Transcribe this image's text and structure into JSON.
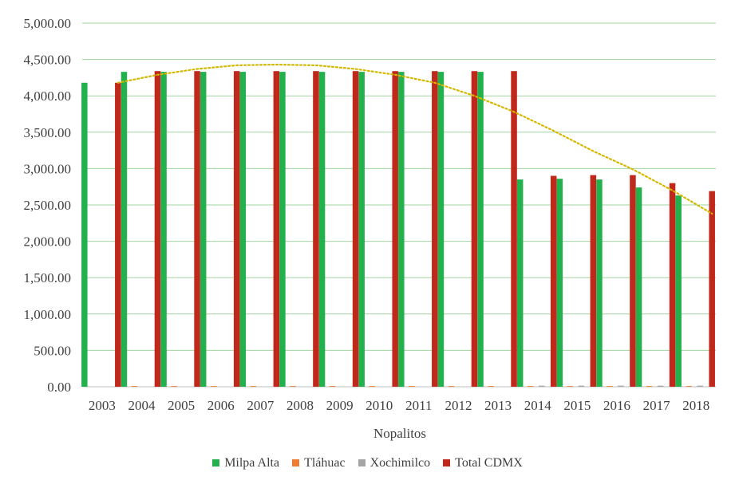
{
  "chart_data": {
    "type": "bar",
    "xlabel": "Nopalitos",
    "ylabel": "",
    "ylim": [
      0,
      5000
    ],
    "yticks": [
      "0.00",
      "500.00",
      "1,000.00",
      "1,500.00",
      "2,000.00",
      "2,500.00",
      "3,000.00",
      "3,500.00",
      "4,000.00",
      "4,500.00",
      "5,000.00"
    ],
    "grid": true,
    "legend_position": "bottom",
    "categories": [
      "2003",
      "2004",
      "2005",
      "2006",
      "2007",
      "2008",
      "2009",
      "2010",
      "2011",
      "2012",
      "2013",
      "2014",
      "2015",
      "2016",
      "2017",
      "2018"
    ],
    "series": [
      {
        "name": "Milpa Alta",
        "color": "#22b14c",
        "values": [
          4180,
          4330,
          4330,
          4330,
          4330,
          4330,
          4330,
          4330,
          4330,
          4330,
          4330,
          2850,
          2860,
          2850,
          2740,
          2630
        ]
      },
      {
        "name": "Tláhuac",
        "color": "#ed7d31",
        "values": [
          0,
          10,
          10,
          10,
          10,
          10,
          10,
          10,
          10,
          10,
          10,
          10,
          10,
          10,
          10,
          10
        ]
      },
      {
        "name": "Xochimilco",
        "color": "#a5a5a5",
        "values": [
          0,
          0,
          0,
          0,
          0,
          0,
          0,
          0,
          0,
          0,
          0,
          15,
          15,
          15,
          15,
          15
        ]
      },
      {
        "name": "Total CDMX",
        "color": "#c0281b",
        "values": [
          4180,
          4340,
          4340,
          4340,
          4340,
          4340,
          4340,
          4340,
          4340,
          4340,
          4340,
          2900,
          2910,
          2910,
          2800,
          2690
        ]
      }
    ],
    "trendline": {
      "type": "polynomial",
      "color": "#d4b800",
      "values": [
        4180,
        4290,
        4370,
        4420,
        4430,
        4420,
        4370,
        4290,
        4180,
        4000,
        3780,
        3520,
        3240,
        2990,
        2700,
        2380
      ]
    }
  }
}
